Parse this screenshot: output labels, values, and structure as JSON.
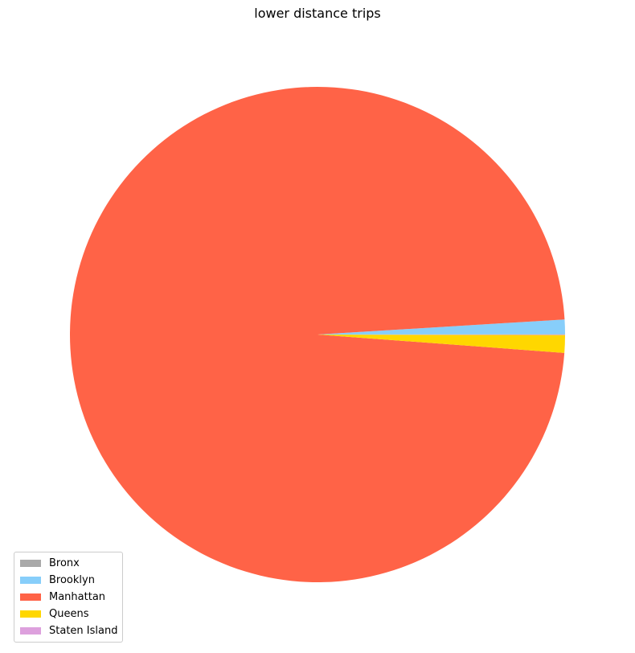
{
  "chart_data": {
    "type": "pie",
    "title": "lower distance trips",
    "labels": [
      "Bronx",
      "Brooklyn",
      "Manhattan",
      "Queens",
      "Staten Island"
    ],
    "values": [
      0.02,
      0.95,
      97.85,
      1.15,
      0.03
    ],
    "colors": [
      "#a9a9a9",
      "#87cefa",
      "#ff6347",
      "#ffd700",
      "#dda0dd"
    ],
    "legend_placement": "lower-left",
    "start_angle_deg": 0,
    "direction": "counterclockwise"
  }
}
